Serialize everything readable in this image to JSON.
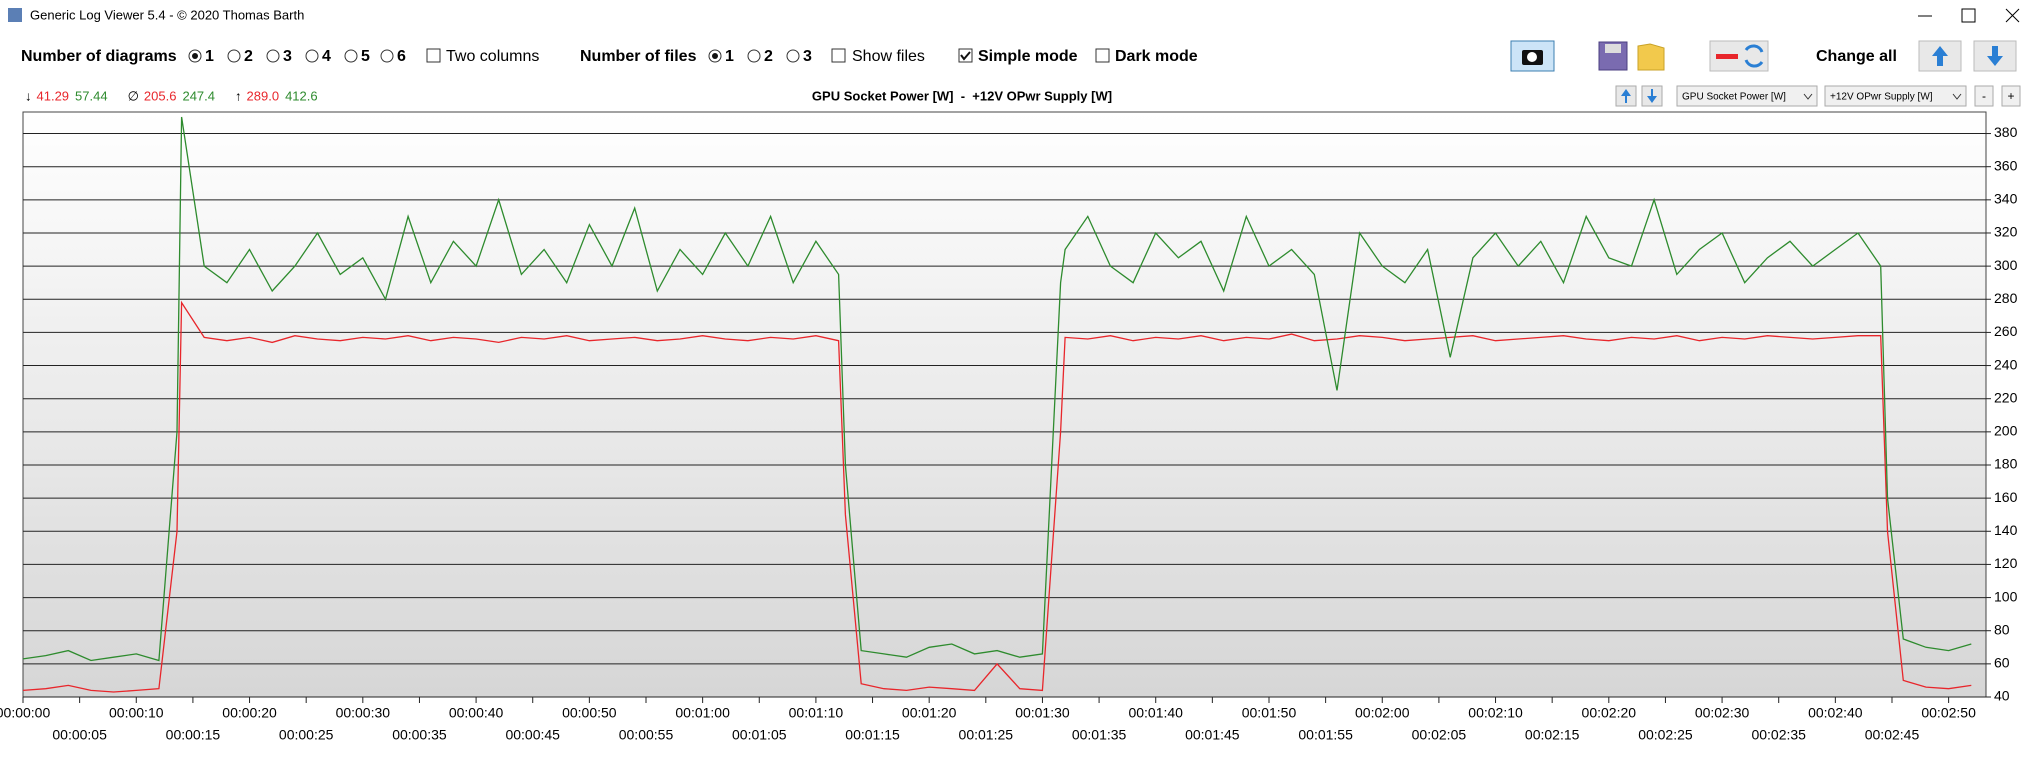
{
  "window": {
    "title": "Generic Log Viewer 5.4 - © 2020 Thomas Barth"
  },
  "toolbar": {
    "diagrams_label": "Number of diagrams",
    "diagram_options": [
      "1",
      "2",
      "3",
      "4",
      "5",
      "6"
    ],
    "diagrams_selected": 0,
    "two_columns": "Two columns",
    "two_columns_checked": false,
    "files_label": "Number of files",
    "file_options": [
      "1",
      "2",
      "3"
    ],
    "files_selected": 0,
    "show_files": "Show files",
    "show_files_checked": false,
    "simple_mode": "Simple mode",
    "simple_mode_checked": true,
    "dark_mode": "Dark mode",
    "dark_mode_checked": false,
    "change_all": "Change all"
  },
  "stats": [
    {
      "symbol": "↓",
      "values": [
        "41.29",
        "57.44"
      ]
    },
    {
      "symbol": "∅",
      "values": [
        "205.6",
        "247.4"
      ]
    },
    {
      "symbol": "↑",
      "values": [
        "289.0",
        "412.6"
      ]
    }
  ],
  "selectors": [
    "GPU Socket Power [W]",
    "+12V OPwr Supply [W]"
  ],
  "buttons": [
    "-",
    "+"
  ],
  "chart_data": {
    "type": "line",
    "title": "GPU Socket Power [W]  -  +12V OPwr Supply [W]",
    "x": [
      0,
      2,
      4,
      6,
      8,
      10,
      12,
      13.6,
      14,
      16,
      18,
      20,
      22,
      24,
      26,
      28,
      30,
      32,
      34,
      36,
      38,
      40,
      42,
      44,
      46,
      48,
      50,
      52,
      54,
      56,
      58,
      60,
      62,
      64,
      66,
      68,
      70,
      72,
      72.6,
      74,
      76,
      78,
      80,
      82,
      84,
      86,
      88,
      90,
      91.6,
      92,
      94,
      96,
      98,
      100,
      102,
      104,
      106,
      108,
      110,
      112,
      114,
      116,
      118,
      120,
      122,
      124,
      126,
      128,
      130,
      132,
      134,
      136,
      138,
      140,
      142,
      144,
      146,
      148,
      150,
      152,
      154,
      156,
      158,
      160,
      162,
      164,
      164.6,
      166,
      168,
      170,
      172
    ],
    "series": [
      {
        "name": "GPU Socket Power [W]",
        "color": "#e8262b",
        "values": [
          44,
          45,
          47,
          44,
          43,
          44,
          45,
          140,
          278,
          257,
          255,
          257,
          254,
          258,
          256,
          255,
          257,
          256,
          258,
          255,
          257,
          256,
          254,
          257,
          256,
          258,
          255,
          256,
          257,
          255,
          256,
          258,
          256,
          255,
          257,
          256,
          258,
          255,
          150,
          48,
          45,
          44,
          46,
          45,
          44,
          60,
          45,
          44,
          200,
          257,
          256,
          258,
          255,
          257,
          256,
          258,
          255,
          257,
          256,
          259,
          255,
          256,
          258,
          257,
          255,
          256,
          257,
          258,
          255,
          256,
          257,
          258,
          256,
          255,
          257,
          256,
          258,
          255,
          257,
          256,
          258,
          257,
          256,
          257,
          258,
          258,
          140,
          50,
          46,
          45,
          47
        ]
      },
      {
        "name": "+12V OPwr Supply [W]",
        "color": "#2e8b2e",
        "values": [
          63,
          65,
          68,
          62,
          64,
          66,
          62,
          200,
          390,
          300,
          290,
          310,
          285,
          300,
          320,
          295,
          305,
          280,
          330,
          290,
          315,
          300,
          340,
          295,
          310,
          290,
          325,
          300,
          335,
          285,
          310,
          295,
          320,
          300,
          330,
          290,
          315,
          295,
          180,
          68,
          66,
          64,
          70,
          72,
          66,
          68,
          64,
          66,
          290,
          310,
          330,
          300,
          290,
          320,
          305,
          315,
          285,
          330,
          300,
          310,
          295,
          225,
          320,
          300,
          290,
          310,
          245,
          305,
          320,
          300,
          315,
          290,
          330,
          305,
          300,
          340,
          295,
          310,
          320,
          290,
          305,
          315,
          300,
          310,
          320,
          300,
          160,
          75,
          70,
          68,
          72
        ]
      }
    ],
    "xlim": [
      0,
      173.3
    ],
    "xticks": [
      {
        "value": 0,
        "label": "00:00:00"
      },
      {
        "value": 5,
        "label": "00:00:05"
      },
      {
        "value": 10,
        "label": "00:00:10"
      },
      {
        "value": 15,
        "label": "00:00:15"
      },
      {
        "value": 20,
        "label": "00:00:20"
      },
      {
        "value": 25,
        "label": "00:00:25"
      },
      {
        "value": 30,
        "label": "00:00:30"
      },
      {
        "value": 35,
        "label": "00:00:35"
      },
      {
        "value": 40,
        "label": "00:00:40"
      },
      {
        "value": 45,
        "label": "00:00:45"
      },
      {
        "value": 50,
        "label": "00:00:50"
      },
      {
        "value": 55,
        "label": "00:00:55"
      },
      {
        "value": 60,
        "label": "00:01:00"
      },
      {
        "value": 65,
        "label": "00:01:05"
      },
      {
        "value": 70,
        "label": "00:01:10"
      },
      {
        "value": 75,
        "label": "00:01:15"
      },
      {
        "value": 80,
        "label": "00:01:20"
      },
      {
        "value": 85,
        "label": "00:01:25"
      },
      {
        "value": 90,
        "label": "00:01:30"
      },
      {
        "value": 95,
        "label": "00:01:35"
      },
      {
        "value": 100,
        "label": "00:01:40"
      },
      {
        "value": 105,
        "label": "00:01:45"
      },
      {
        "value": 110,
        "label": "00:01:50"
      },
      {
        "value": 115,
        "label": "00:01:55"
      },
      {
        "value": 120,
        "label": "00:02:00"
      },
      {
        "value": 125,
        "label": "00:02:05"
      },
      {
        "value": 130,
        "label": "00:02:10"
      },
      {
        "value": 135,
        "label": "00:02:15"
      },
      {
        "value": 140,
        "label": "00:02:20"
      },
      {
        "value": 145,
        "label": "00:02:25"
      },
      {
        "value": 150,
        "label": "00:02:30"
      },
      {
        "value": 155,
        "label": "00:02:35"
      },
      {
        "value": 160,
        "label": "00:02:40"
      },
      {
        "value": 165,
        "label": "00:02:45"
      },
      {
        "value": 170,
        "label": "00:02:50"
      }
    ],
    "ylim": [
      40,
      393
    ],
    "yticks": [
      40,
      60,
      80,
      100,
      120,
      140,
      160,
      180,
      200,
      220,
      240,
      260,
      280,
      300,
      320,
      340,
      360,
      380
    ],
    "grid": true
  }
}
